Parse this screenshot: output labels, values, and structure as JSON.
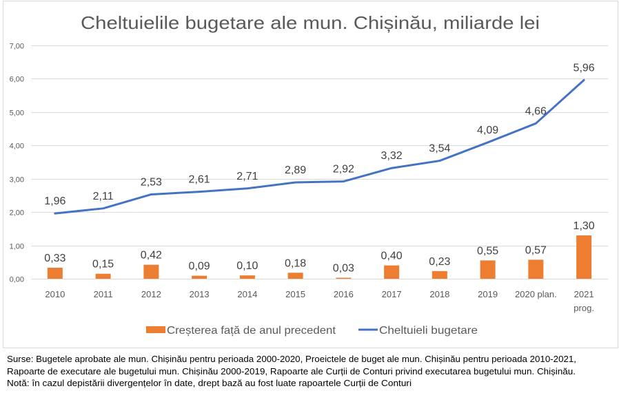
{
  "chart_data": {
    "type": "bar",
    "title": "Cheltuielile bugetare ale mun. Chișinău, miliarde lei",
    "xlabel": "",
    "ylabel": "",
    "ylim": [
      0,
      7
    ],
    "grid": true,
    "legend": "bottom",
    "y_ticks": [
      "0,00",
      "1,00",
      "2,00",
      "3,00",
      "4,00",
      "5,00",
      "6,00",
      "7,00"
    ],
    "categories": [
      "2010",
      "2011",
      "2012",
      "2013",
      "2014",
      "2015",
      "2016",
      "2017",
      "2018",
      "2019",
      "2020 plan.",
      "2021 prog."
    ],
    "category_label_lines": [
      [
        "2010"
      ],
      [
        "2011"
      ],
      [
        "2012"
      ],
      [
        "2013"
      ],
      [
        "2014"
      ],
      [
        "2015"
      ],
      [
        "2016"
      ],
      [
        "2017"
      ],
      [
        "2018"
      ],
      [
        "2019"
      ],
      [
        "2020 plan."
      ],
      [
        "2021",
        "prog."
      ]
    ],
    "series": [
      {
        "name": "Creșterea față de anul precedent",
        "type": "bar",
        "color": "#ED7D31",
        "values": [
          0.33,
          0.15,
          0.42,
          0.09,
          0.1,
          0.18,
          0.03,
          0.4,
          0.23,
          0.55,
          0.57,
          1.3
        ],
        "labels": [
          "0,33",
          "0,15",
          "0,42",
          "0,09",
          "0,10",
          "0,18",
          "0,03",
          "0,40",
          "0,23",
          "0,55",
          "0,57",
          "1,30"
        ]
      },
      {
        "name": "Cheltuieli bugetare",
        "type": "line",
        "color": "#4472C4",
        "values": [
          1.96,
          2.11,
          2.53,
          2.61,
          2.71,
          2.89,
          2.92,
          3.32,
          3.54,
          4.09,
          4.66,
          5.96
        ],
        "labels": [
          "1,96",
          "2,11",
          "2,53",
          "2,61",
          "2,71",
          "2,89",
          "2,92",
          "3,32",
          "3,54",
          "4,09",
          "4,66",
          "5,96"
        ]
      }
    ]
  },
  "footnote": {
    "lines": [
      "Surse: Bugetele aprobate ale mun. Chișinău pentru perioada 2000-2020,  Proeictele de buget ale mun. Chișinău pentru perioada 2010-2021,",
      "Rapoarte de executare ale bugetului mun. Chișinău 2000-2019,  Rapoarte ale Curții de Conturi privind executarea bugetului mun. Chișinău.",
      "Notă: în cazul depistării divergențelor în date, drept bază au fost luate rapoartele Curții de Conturi"
    ]
  }
}
